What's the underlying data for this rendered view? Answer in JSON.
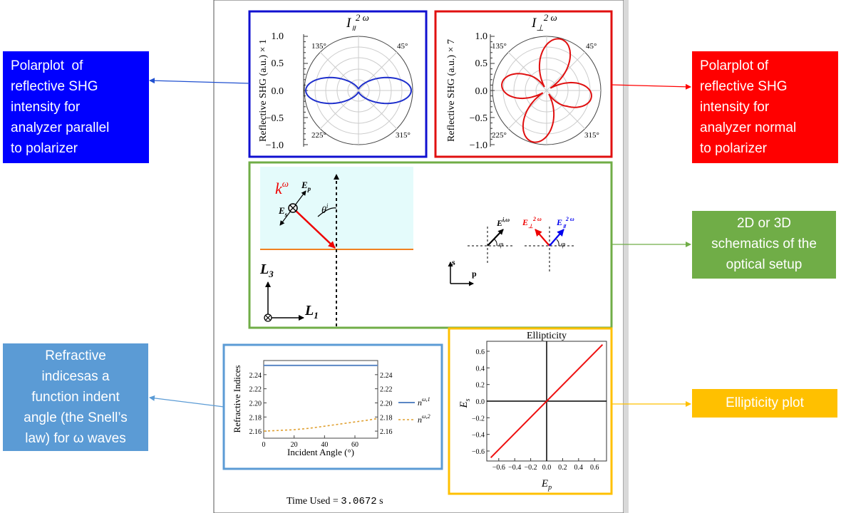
{
  "annotations": {
    "parallel": [
      "Polarplot  of",
      "reflective SHG",
      "intensity for",
      "analyzer parallel",
      "to polarizer"
    ],
    "normal": [
      "Polarplot of",
      "reflective SHG",
      "intensity for",
      "analyzer normal",
      "to polarizer"
    ],
    "schematic": [
      "2D or 3D",
      "schematics of the",
      "optical setup"
    ],
    "refractive": [
      "Refractive",
      "indicesas a",
      "function indent",
      "angle (the Snell’s",
      "law) for ω waves"
    ],
    "ellipticity": [
      "Ellipticity plot"
    ]
  },
  "polar_parallel": {
    "title_base": "I",
    "title_sub": "॥",
    "title_sup": "2 ω",
    "ylabel": "Reflective SHG (a.u.) × 1",
    "ticks": [
      "1.0",
      "0.5",
      "0.0",
      "−0.5",
      "−1.0"
    ],
    "angles": [
      "135°",
      "45°",
      "225°",
      "315°"
    ]
  },
  "polar_normal": {
    "title_base": "I",
    "title_sub": "⊥",
    "title_sup": "2 ω",
    "ylabel": "Reflective SHG (a.u.) × 7",
    "ticks": [
      "1.0",
      "0.5",
      "0.0",
      "−0.5",
      "−1.0"
    ],
    "angles": [
      "135°",
      "45°",
      "225°",
      "315°"
    ]
  },
  "schematic": {
    "k_label": "k",
    "k_sup": "ω",
    "ep_label": "E",
    "ep_sub": "p",
    "es_label": "E",
    "es_sub": "s",
    "theta_label": "θ",
    "theta_sup": "i",
    "l3_label": "L",
    "l3_sub": "3",
    "l1_label": "L",
    "l1_sub": "1",
    "s_label": "s",
    "p_label": "p",
    "ei_label": "E",
    "ei_sup": "i,ω",
    "phi": "φ",
    "eperp_label": "E",
    "eperp_sub": "⊥",
    "eperp_sup": "2 ω",
    "epar_label": "E",
    "epar_sub": "॥",
    "epar_sup": "2 ω"
  },
  "chart_data": [
    {
      "type": "line",
      "title": "",
      "xlabel": "Incident Angle (°)",
      "ylabel": "Refractive Indices",
      "xlim": [
        0,
        75
      ],
      "ylim": [
        2.15,
        2.26
      ],
      "xticks": [
        "0",
        "20",
        "40",
        "60"
      ],
      "yticks": [
        "2.16",
        "2.18",
        "2.20",
        "2.22",
        "2.24"
      ],
      "series": [
        {
          "name": "n^{ω,1}",
          "legend_base": "n",
          "legend_sup": "ω,1",
          "color": "#5b87c5",
          "style": "solid",
          "x": [
            0,
            10,
            20,
            30,
            40,
            50,
            60,
            70,
            75
          ],
          "y": [
            2.253,
            2.253,
            2.253,
            2.253,
            2.253,
            2.253,
            2.253,
            2.253,
            2.253
          ]
        },
        {
          "name": "n^{ω,2}",
          "legend_base": "n",
          "legend_sup": "ω,2",
          "color": "#e0a030",
          "style": "dashed",
          "x": [
            0,
            10,
            20,
            30,
            40,
            50,
            60,
            70,
            75
          ],
          "y": [
            2.16,
            2.161,
            2.162,
            2.164,
            2.167,
            2.17,
            2.173,
            2.176,
            2.178
          ]
        }
      ]
    },
    {
      "type": "line",
      "title": "Ellipticity",
      "xlabel": "E_p",
      "xlabel_base": "E",
      "xlabel_sub": "p",
      "ylabel": "E_s",
      "ylabel_base": "E",
      "ylabel_sub": "s",
      "xlim": [
        -0.75,
        0.75
      ],
      "ylim": [
        -0.72,
        0.72
      ],
      "xticks": [
        "−0.6",
        "−0.4",
        "−0.2",
        "0.0",
        "0.2",
        "0.4",
        "0.6"
      ],
      "yticks": [
        "0.6",
        "0.4",
        "0.2",
        "0.0",
        "−0.2",
        "−0.4",
        "−0.6"
      ],
      "series": [
        {
          "name": "ellipticity",
          "color": "#ee1111",
          "x": [
            -0.7,
            0.7
          ],
          "y": [
            -0.68,
            0.68
          ]
        }
      ]
    }
  ],
  "footer": {
    "label": "Time Used = ",
    "value": "3.0672",
    "unit": " s"
  }
}
